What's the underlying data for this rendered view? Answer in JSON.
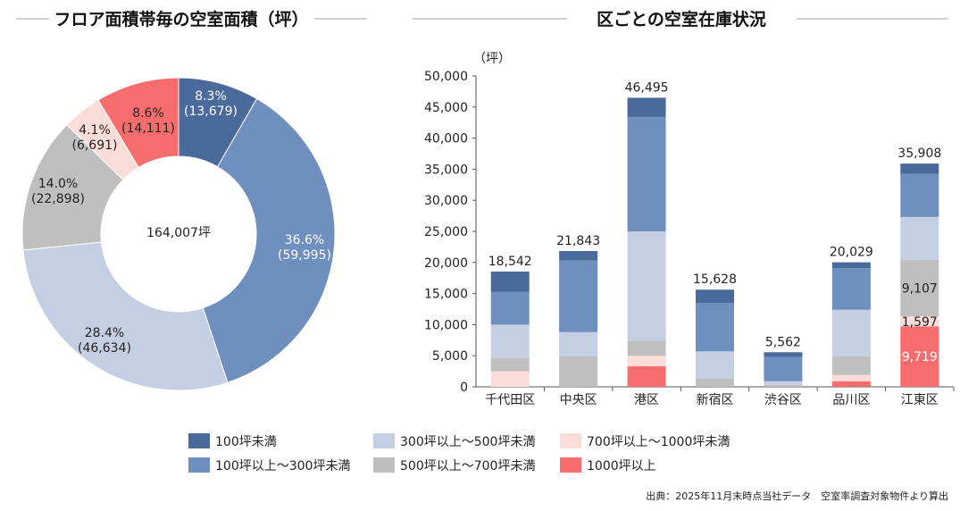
{
  "colors": {
    "under100": "#4a6a9c",
    "100to300": "#6f8fbf",
    "300to500": "#c4cfe3",
    "500to700": "#bfbfbf",
    "700to1000": "#fadcd8",
    "over1000": "#f76d6d"
  },
  "legend": [
    {
      "key": "under100",
      "label": "100坪未満"
    },
    {
      "key": "300to500",
      "label": "300坪以上～500坪未満"
    },
    {
      "key": "700to1000",
      "label": "700坪以上～1000坪未満"
    },
    {
      "key": "100to300",
      "label": "100坪以上～300坪未満"
    },
    {
      "key": "500to700",
      "label": "500坪以上～700坪未満"
    },
    {
      "key": "over1000",
      "label": "1000坪以上"
    }
  ],
  "source": "出典：2025年11月末時点当社データ　空室率調査対象物件より算出",
  "chart_data": [
    {
      "type": "pie",
      "title": "フロア面積帯毎の空室面積（坪）",
      "center_label": "164,007坪",
      "slices": [
        {
          "key": "under100",
          "value": 13679,
          "pct": "8.3%",
          "value_label": "(13,679)"
        },
        {
          "key": "100to300",
          "value": 59995,
          "pct": "36.6%",
          "value_label": "(59,995)"
        },
        {
          "key": "300to500",
          "value": 46634,
          "pct": "28.4%",
          "value_label": "(46,634)"
        },
        {
          "key": "500to700",
          "value": 22898,
          "pct": "14.0%",
          "value_label": "(22,898)"
        },
        {
          "key": "700to1000",
          "value": 6691,
          "pct": "4.1%",
          "value_label": "(6,691)"
        },
        {
          "key": "over1000",
          "value": 14111,
          "pct": "8.6%",
          "value_label": "(14,111)"
        }
      ]
    },
    {
      "type": "bar",
      "stacked": true,
      "title": "区ごとの空室在庫状況",
      "ylabel": "（坪）",
      "ylim": [
        0,
        50000
      ],
      "yticks": [
        0,
        5000,
        10000,
        15000,
        20000,
        25000,
        30000,
        35000,
        40000,
        45000,
        50000
      ],
      "ytick_labels": [
        "0",
        "5,000",
        "10,000",
        "15,000",
        "20,000",
        "25,000",
        "30,000",
        "35,000",
        "40,000",
        "45,000",
        "50,000"
      ],
      "categories": [
        "千代田区",
        "中央区",
        "港区",
        "新宿区",
        "渋谷区",
        "品川区",
        "江東区"
      ],
      "totals": [
        "18,542",
        "21,843",
        "46,495",
        "15,628",
        "5,562",
        "20,029",
        "35,908"
      ],
      "series": [
        {
          "key": "over1000",
          "values": [
            0,
            0,
            3300,
            0,
            0,
            900,
            9719
          ]
        },
        {
          "key": "700to1000",
          "values": [
            2500,
            0,
            1700,
            0,
            0,
            1000,
            1597
          ]
        },
        {
          "key": "500to700",
          "values": [
            2200,
            4900,
            2400,
            1300,
            300,
            3000,
            9107
          ]
        },
        {
          "key": "300to500",
          "values": [
            5300,
            3900,
            17600,
            4400,
            600,
            7500,
            6900
          ]
        },
        {
          "key": "100to300",
          "values": [
            5300,
            11500,
            18400,
            7800,
            3900,
            6700,
            6900
          ]
        },
        {
          "key": "under100",
          "values": [
            3242,
            1543,
            3095,
            2128,
            762,
            929,
            1685
          ]
        }
      ],
      "data_labels": [
        {
          "category": "江東区",
          "key": "over1000",
          "text": "9,719"
        },
        {
          "category": "江東区",
          "key": "700to1000",
          "text": "1,597"
        },
        {
          "category": "江東区",
          "key": "500to700",
          "text": "9,107"
        }
      ]
    }
  ]
}
